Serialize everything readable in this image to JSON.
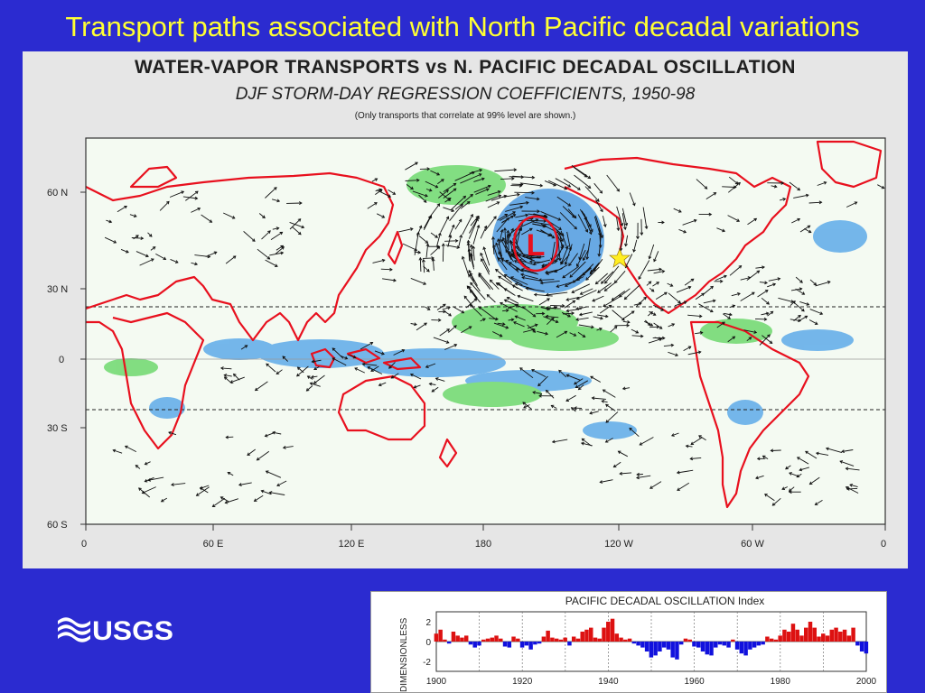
{
  "slide": {
    "title": "Transport paths associated with North Pacific decadal variations"
  },
  "map": {
    "title": "WATER-VAPOR TRANSPORTS vs N. PACIFIC DECADAL OSCILLATION",
    "subtitle": "DJF STORM-DAY REGRESSION COEFFICIENTS, 1950-98",
    "note": "(Only transports that correlate at 99% level are shown.)",
    "lat_labels": [
      "60 N",
      "30 N",
      "0",
      "30 S",
      "60 S"
    ],
    "lon_labels": [
      "0",
      "60 E",
      "120 E",
      "180",
      "120 W",
      "60 W",
      "0"
    ],
    "low_marker": "L",
    "colors": {
      "coast": "#e8101e",
      "positive": "#5cd45c",
      "negative": "#4aa0e8",
      "star": "#ffee22"
    }
  },
  "logo": {
    "text": "USGS"
  },
  "chart_data": {
    "type": "bar",
    "title": "PACIFIC DECADAL OSCILLATION Index",
    "ylabel": "DIMENSIONLESS",
    "xlabel": "",
    "ylim": [
      -3,
      3
    ],
    "yticks": [
      "2",
      "0",
      "-2"
    ],
    "xticks": [
      "1900",
      "1920",
      "1940",
      "1960",
      "1980",
      "2000"
    ],
    "x": [
      1900,
      1901,
      1902,
      1903,
      1904,
      1905,
      1906,
      1907,
      1908,
      1909,
      1910,
      1911,
      1912,
      1913,
      1914,
      1915,
      1916,
      1917,
      1918,
      1919,
      1920,
      1921,
      1922,
      1923,
      1924,
      1925,
      1926,
      1927,
      1928,
      1929,
      1930,
      1931,
      1932,
      1933,
      1934,
      1935,
      1936,
      1937,
      1938,
      1939,
      1940,
      1941,
      1942,
      1943,
      1944,
      1945,
      1946,
      1947,
      1948,
      1949,
      1950,
      1951,
      1952,
      1953,
      1954,
      1955,
      1956,
      1957,
      1958,
      1959,
      1960,
      1961,
      1962,
      1963,
      1964,
      1965,
      1966,
      1967,
      1968,
      1969,
      1970,
      1971,
      1972,
      1973,
      1974,
      1975,
      1976,
      1977,
      1978,
      1979,
      1980,
      1981,
      1982,
      1983,
      1984,
      1985,
      1986,
      1987,
      1988,
      1989,
      1990,
      1991,
      1992,
      1993,
      1994,
      1995,
      1996,
      1997,
      1998,
      1999,
      2000
    ],
    "values": [
      0.8,
      1.2,
      0.2,
      -0.2,
      1.0,
      0.6,
      0.4,
      0.6,
      -0.3,
      -0.6,
      -0.4,
      0.2,
      0.3,
      0.4,
      0.6,
      0.3,
      -0.5,
      -0.6,
      0.5,
      0.3,
      -0.6,
      -0.4,
      -0.8,
      -0.3,
      -0.2,
      0.5,
      1.1,
      0.4,
      0.3,
      0.2,
      0.4,
      -0.4,
      0.5,
      0.3,
      1.0,
      1.2,
      1.4,
      0.4,
      0.3,
      1.4,
      2.0,
      2.3,
      0.8,
      0.4,
      0.2,
      0.3,
      -0.2,
      -0.4,
      -0.6,
      -1.0,
      -1.6,
      -1.4,
      -1.0,
      -0.6,
      -0.8,
      -1.6,
      -1.8,
      -0.3,
      0.3,
      0.2,
      -0.5,
      -0.6,
      -1.0,
      -1.3,
      -1.4,
      -0.6,
      -0.3,
      -0.4,
      -0.6,
      0.2,
      -0.8,
      -1.2,
      -1.4,
      -0.8,
      -0.6,
      -0.4,
      -0.3,
      0.5,
      0.3,
      0.2,
      0.6,
      1.2,
      1.0,
      1.8,
      1.2,
      0.6,
      1.4,
      2.0,
      1.4,
      0.5,
      0.8,
      0.6,
      1.2,
      1.4,
      1.0,
      1.2,
      0.6,
      1.4,
      -0.4,
      -1.0,
      -1.2
    ],
    "colors": {
      "positive": "#dd1111",
      "negative": "#1111dd"
    }
  }
}
